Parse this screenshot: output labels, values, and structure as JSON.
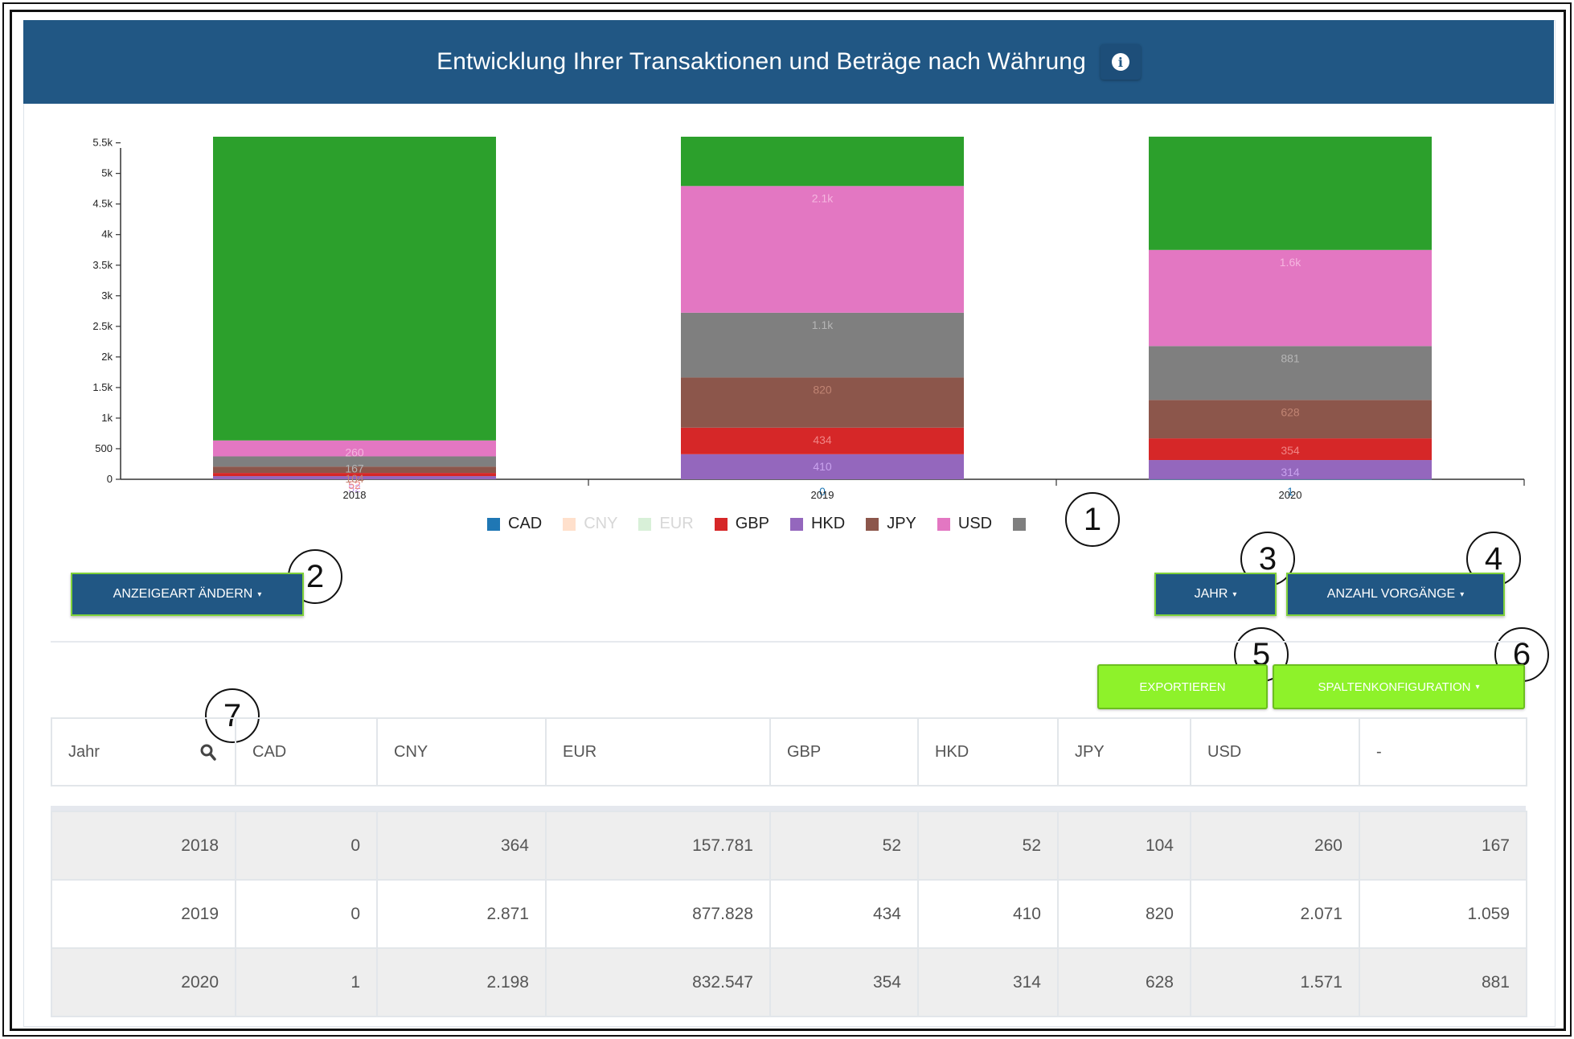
{
  "header": {
    "title": "Entwicklung Ihrer Transaktionen und Beträge nach Währung",
    "info_icon": "info-icon"
  },
  "chart_data": {
    "type": "bar",
    "stacked": true,
    "categories": [
      "2018",
      "2019",
      "2020"
    ],
    "ylim": [
      0,
      5600
    ],
    "yticks": [
      "0",
      "500",
      "1k",
      "1.5k",
      "2k",
      "2.5k",
      "3k",
      "3.5k",
      "4k",
      "4.5k",
      "5k",
      "5.5k"
    ],
    "series": [
      {
        "name": "CAD",
        "color": "#1f77b4",
        "values": [
          0,
          0,
          1
        ],
        "labels": [
          "",
          "0",
          "1"
        ]
      },
      {
        "name": "HKD",
        "color": "#9467bd",
        "values": [
          52,
          410,
          314
        ],
        "labels": [
          "52",
          "410",
          "314"
        ]
      },
      {
        "name": "GBP",
        "color": "#d62728",
        "values": [
          52,
          434,
          354
        ],
        "labels": [
          "52",
          "434",
          "354"
        ]
      },
      {
        "name": "JPY",
        "color": "#8c564b",
        "values": [
          104,
          820,
          628
        ],
        "labels": [
          "104",
          "820",
          "628"
        ]
      },
      {
        "name": "-",
        "color": "#7f7f7f",
        "values": [
          167,
          1059,
          881
        ],
        "labels": [
          "167",
          "1.1k",
          "881"
        ]
      },
      {
        "name": "USD",
        "color": "#e377c2",
        "values": [
          260,
          2071,
          1571
        ],
        "labels": [
          "260",
          "2.1k",
          "1.6k"
        ]
      },
      {
        "name": "EUR",
        "color": "#2ca02c",
        "values": [
          4965,
          806,
          1852
        ],
        "labels": [
          "",
          "",
          ""
        ]
      }
    ],
    "legend": [
      {
        "name": "CAD",
        "color": "#1f77b4",
        "active": true
      },
      {
        "name": "CNY",
        "color": "#ffe0cc",
        "active": false
      },
      {
        "name": "EUR",
        "color": "#d8f0d8",
        "active": false
      },
      {
        "name": "GBP",
        "color": "#d62728",
        "active": true
      },
      {
        "name": "HKD",
        "color": "#9467bd",
        "active": true
      },
      {
        "name": "JPY",
        "color": "#8c564b",
        "active": true
      },
      {
        "name": "USD",
        "color": "#e377c2",
        "active": true
      },
      {
        "name": "",
        "color": "#7f7f7f",
        "active": true
      }
    ]
  },
  "callouts": [
    "1",
    "2",
    "3",
    "4",
    "5",
    "6",
    "7"
  ],
  "buttons": {
    "anzeigeart": "ANZEIGEART ÄNDERN",
    "jahr": "JAHR",
    "anzahl": "ANZAHL VORGÄNGE",
    "exportieren": "EXPORTIEREN",
    "spalten": "SPALTENKONFIGURATION"
  },
  "table": {
    "columns": [
      "Jahr",
      "CAD",
      "CNY",
      "EUR",
      "GBP",
      "HKD",
      "JPY",
      "USD",
      "-"
    ],
    "rows": [
      [
        "2018",
        "0",
        "364",
        "157.781",
        "52",
        "52",
        "104",
        "260",
        "167"
      ],
      [
        "2019",
        "0",
        "2.871",
        "877.828",
        "434",
        "410",
        "820",
        "2.071",
        "1.059"
      ],
      [
        "2020",
        "1",
        "2.198",
        "832.547",
        "354",
        "314",
        "628",
        "1.571",
        "881"
      ]
    ]
  }
}
